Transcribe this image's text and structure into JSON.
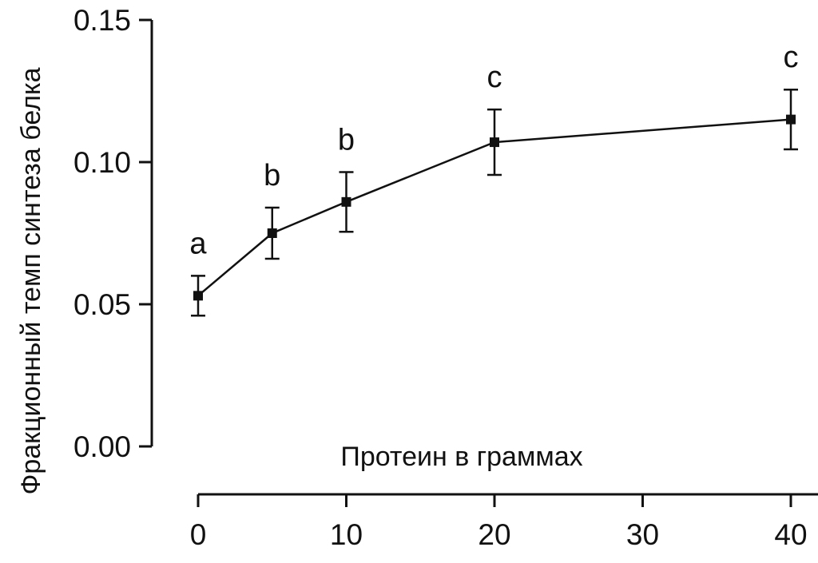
{
  "chart_data": {
    "type": "line",
    "xlabel": "Протеин в граммах",
    "ylabel": "Фракционный темп синтеза белка",
    "xlim": [
      0,
      40
    ],
    "ylim": [
      0,
      0.15
    ],
    "x_ticks": [
      "0",
      "10",
      "20",
      "30",
      "40"
    ],
    "y_ticks": [
      "0.00",
      "0.05",
      "0.10",
      "0.15"
    ],
    "grid": false,
    "series": [
      {
        "x": [
          0,
          5,
          10,
          20,
          40
        ],
        "y": [
          0.053,
          0.075,
          0.086,
          0.107,
          0.115
        ],
        "error": [
          0.007,
          0.009,
          0.0105,
          0.0115,
          0.0105
        ],
        "labels": [
          "a",
          "b",
          "b",
          "c",
          "c"
        ]
      }
    ],
    "colors": {
      "line": "#111111",
      "background": "#ffffff"
    }
  }
}
